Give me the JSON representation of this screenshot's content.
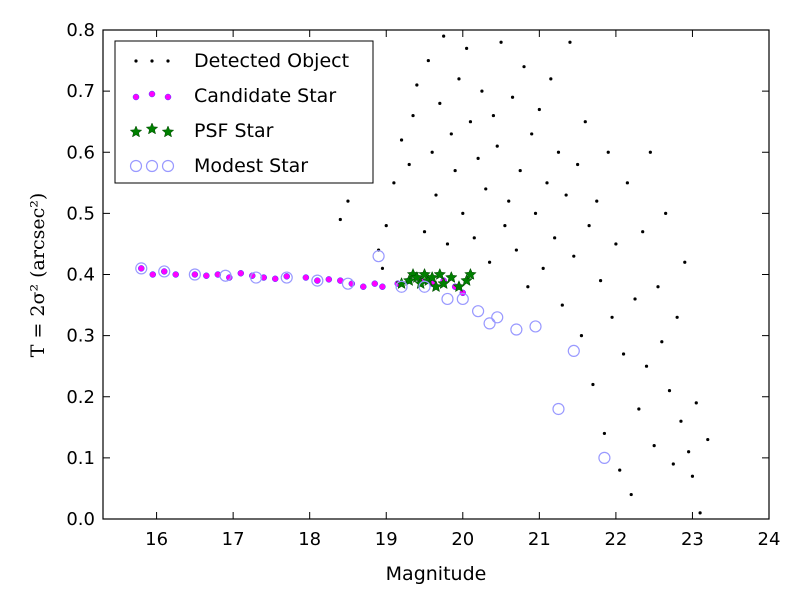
{
  "chart_data": {
    "type": "scatter",
    "xlabel": "Magnitude",
    "ylabel": "T = 2σ² (arcsec²)",
    "xlim": [
      15.3,
      24
    ],
    "ylim": [
      0.0,
      0.8
    ],
    "xticks": [
      "16",
      "17",
      "18",
      "19",
      "20",
      "21",
      "22",
      "23",
      "24"
    ],
    "yticks": [
      "0.0",
      "0.1",
      "0.2",
      "0.3",
      "0.4",
      "0.5",
      "0.6",
      "0.7",
      "0.8"
    ],
    "legend_position": "top-left",
    "grid": false,
    "series": [
      {
        "name": "Detected Object",
        "marker": "dot",
        "color": "#000000",
        "x": [
          18.4,
          18.5,
          18.9,
          18.95,
          19.0,
          19.1,
          19.2,
          19.3,
          19.35,
          19.4,
          19.5,
          19.55,
          19.6,
          19.65,
          19.7,
          19.75,
          19.8,
          19.85,
          19.9,
          19.95,
          20.0,
          20.05,
          20.1,
          20.15,
          20.2,
          20.25,
          20.3,
          20.35,
          20.4,
          20.45,
          20.5,
          20.55,
          20.6,
          20.65,
          20.7,
          20.75,
          20.8,
          20.85,
          20.9,
          20.95,
          21.0,
          21.05,
          21.1,
          21.15,
          21.2,
          21.25,
          21.3,
          21.35,
          21.4,
          21.45,
          21.5,
          21.55,
          21.6,
          21.65,
          21.7,
          21.75,
          21.8,
          21.85,
          21.9,
          21.95,
          22.0,
          22.05,
          22.1,
          22.15,
          22.2,
          22.25,
          22.3,
          22.35,
          22.4,
          22.45,
          22.5,
          22.55,
          22.6,
          22.65,
          22.7,
          22.75,
          22.8,
          22.85,
          22.9,
          22.95,
          23.0,
          23.05,
          23.1,
          23.2
        ],
        "y": [
          0.49,
          0.52,
          0.44,
          0.41,
          0.48,
          0.55,
          0.62,
          0.58,
          0.66,
          0.71,
          0.47,
          0.75,
          0.6,
          0.53,
          0.68,
          0.79,
          0.45,
          0.63,
          0.57,
          0.72,
          0.5,
          0.77,
          0.65,
          0.46,
          0.59,
          0.7,
          0.54,
          0.42,
          0.66,
          0.61,
          0.78,
          0.48,
          0.52,
          0.69,
          0.44,
          0.57,
          0.74,
          0.38,
          0.63,
          0.5,
          0.67,
          0.41,
          0.55,
          0.72,
          0.46,
          0.6,
          0.35,
          0.53,
          0.78,
          0.43,
          0.58,
          0.3,
          0.65,
          0.48,
          0.22,
          0.52,
          0.39,
          0.14,
          0.6,
          0.33,
          0.45,
          0.08,
          0.27,
          0.55,
          0.04,
          0.36,
          0.18,
          0.47,
          0.25,
          0.6,
          0.12,
          0.38,
          0.29,
          0.5,
          0.21,
          0.09,
          0.33,
          0.16,
          0.42,
          0.11,
          0.07,
          0.19,
          0.01,
          0.13
        ]
      },
      {
        "name": "Candidate Star",
        "marker": "circle",
        "color": "#ff00ff",
        "x": [
          15.8,
          15.95,
          16.1,
          16.25,
          16.5,
          16.65,
          16.8,
          16.95,
          17.1,
          17.25,
          17.4,
          17.55,
          17.7,
          17.95,
          18.1,
          18.25,
          18.4,
          18.55,
          18.7,
          18.85,
          18.95,
          19.15,
          19.3,
          19.45,
          19.6,
          19.75,
          19.9,
          20.0
        ],
        "y": [
          0.41,
          0.4,
          0.405,
          0.4,
          0.4,
          0.398,
          0.4,
          0.395,
          0.402,
          0.398,
          0.395,
          0.393,
          0.397,
          0.395,
          0.39,
          0.392,
          0.39,
          0.385,
          0.38,
          0.385,
          0.38,
          0.385,
          0.39,
          0.39,
          0.385,
          0.39,
          0.38,
          0.37
        ]
      },
      {
        "name": "PSF Star",
        "marker": "star",
        "color": "#008000",
        "x": [
          19.2,
          19.3,
          19.35,
          19.4,
          19.45,
          19.5,
          19.55,
          19.6,
          19.65,
          19.7,
          19.75,
          19.85,
          19.95,
          20.05,
          20.1
        ],
        "y": [
          0.385,
          0.39,
          0.4,
          0.395,
          0.385,
          0.4,
          0.39,
          0.395,
          0.38,
          0.4,
          0.385,
          0.395,
          0.38,
          0.39,
          0.4
        ]
      },
      {
        "name": "Modest Star",
        "marker": "open-circle",
        "color": "#9999ff",
        "x": [
          15.8,
          16.1,
          16.5,
          16.9,
          17.3,
          17.7,
          18.1,
          18.5,
          18.9,
          19.2,
          19.5,
          19.8,
          20.0,
          20.2,
          20.35,
          20.45,
          20.7,
          20.95,
          21.25,
          21.45,
          21.85
        ],
        "y": [
          0.41,
          0.405,
          0.4,
          0.398,
          0.395,
          0.395,
          0.39,
          0.385,
          0.43,
          0.38,
          0.38,
          0.36,
          0.36,
          0.34,
          0.32,
          0.33,
          0.31,
          0.315,
          0.18,
          0.275,
          0.1
        ]
      }
    ]
  }
}
